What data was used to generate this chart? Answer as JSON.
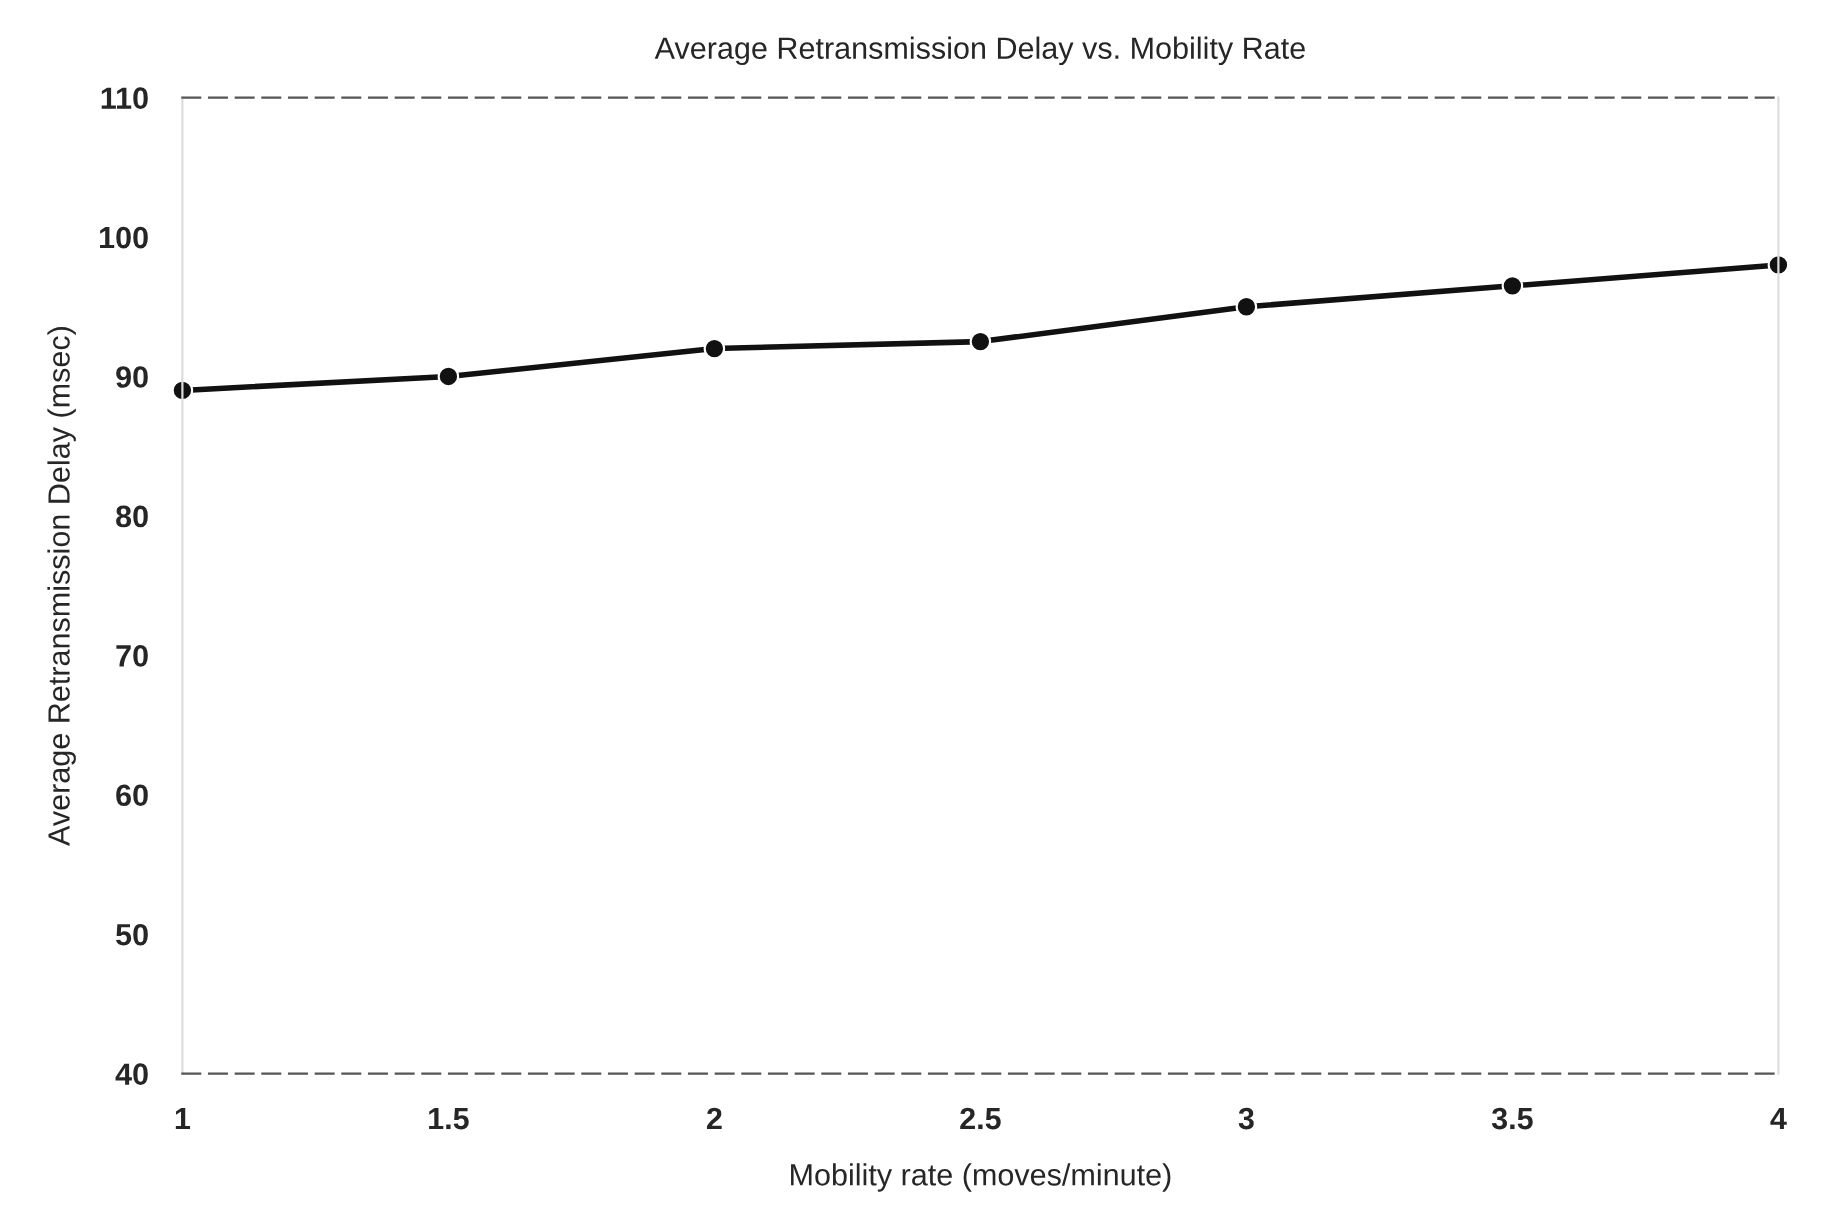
{
  "chart_data": {
    "type": "line",
    "title": "Average Retransmission Delay vs. Mobility Rate",
    "xlabel": "Mobility rate (moves/minute)",
    "ylabel": "Average Retransmission Delay (msec)",
    "x": [
      1,
      1.5,
      2,
      2.5,
      3,
      3.5,
      4
    ],
    "series": [
      {
        "color": "#111111",
        "values": [
          89,
          90,
          92,
          92.5,
          95,
          96.5,
          98
        ]
      }
    ],
    "xlim": [
      1,
      4
    ],
    "xticks": [
      1,
      1.5,
      2,
      2.5,
      3,
      3.5,
      4
    ],
    "ylim": [
      40,
      110
    ],
    "yticks": [
      40,
      50,
      60,
      70,
      80,
      90,
      100,
      110
    ],
    "marker": "circle",
    "line_style": "solid",
    "grid": false,
    "legend": false
  }
}
